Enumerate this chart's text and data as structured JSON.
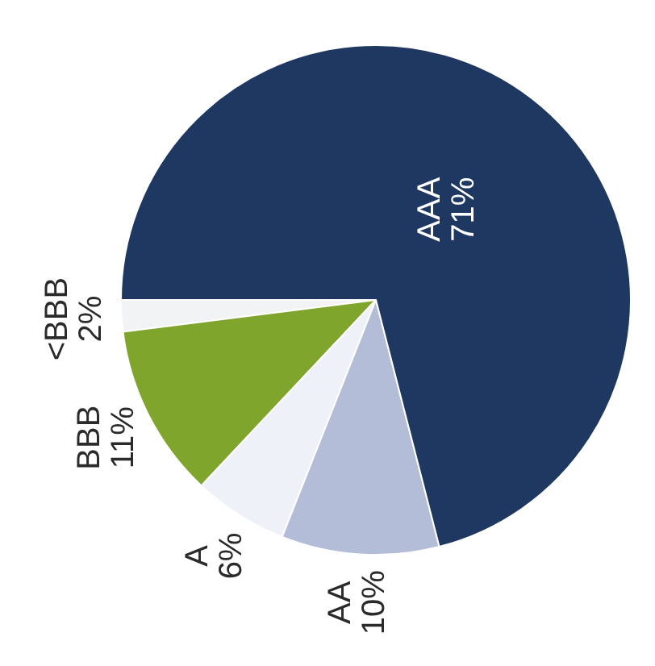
{
  "chart_data": {
    "type": "pie",
    "categories": [
      "<BBB",
      "BBB",
      "A",
      "AA",
      "AAA"
    ],
    "values": [
      2,
      11,
      6,
      10,
      71
    ],
    "colors": [
      "#f2f3f5",
      "#80a52c",
      "#eef1f7",
      "#b4bdd8",
      "#1f3862"
    ],
    "value_labels": [
      "2%",
      "11%",
      "6%",
      "10%",
      "71%"
    ]
  }
}
